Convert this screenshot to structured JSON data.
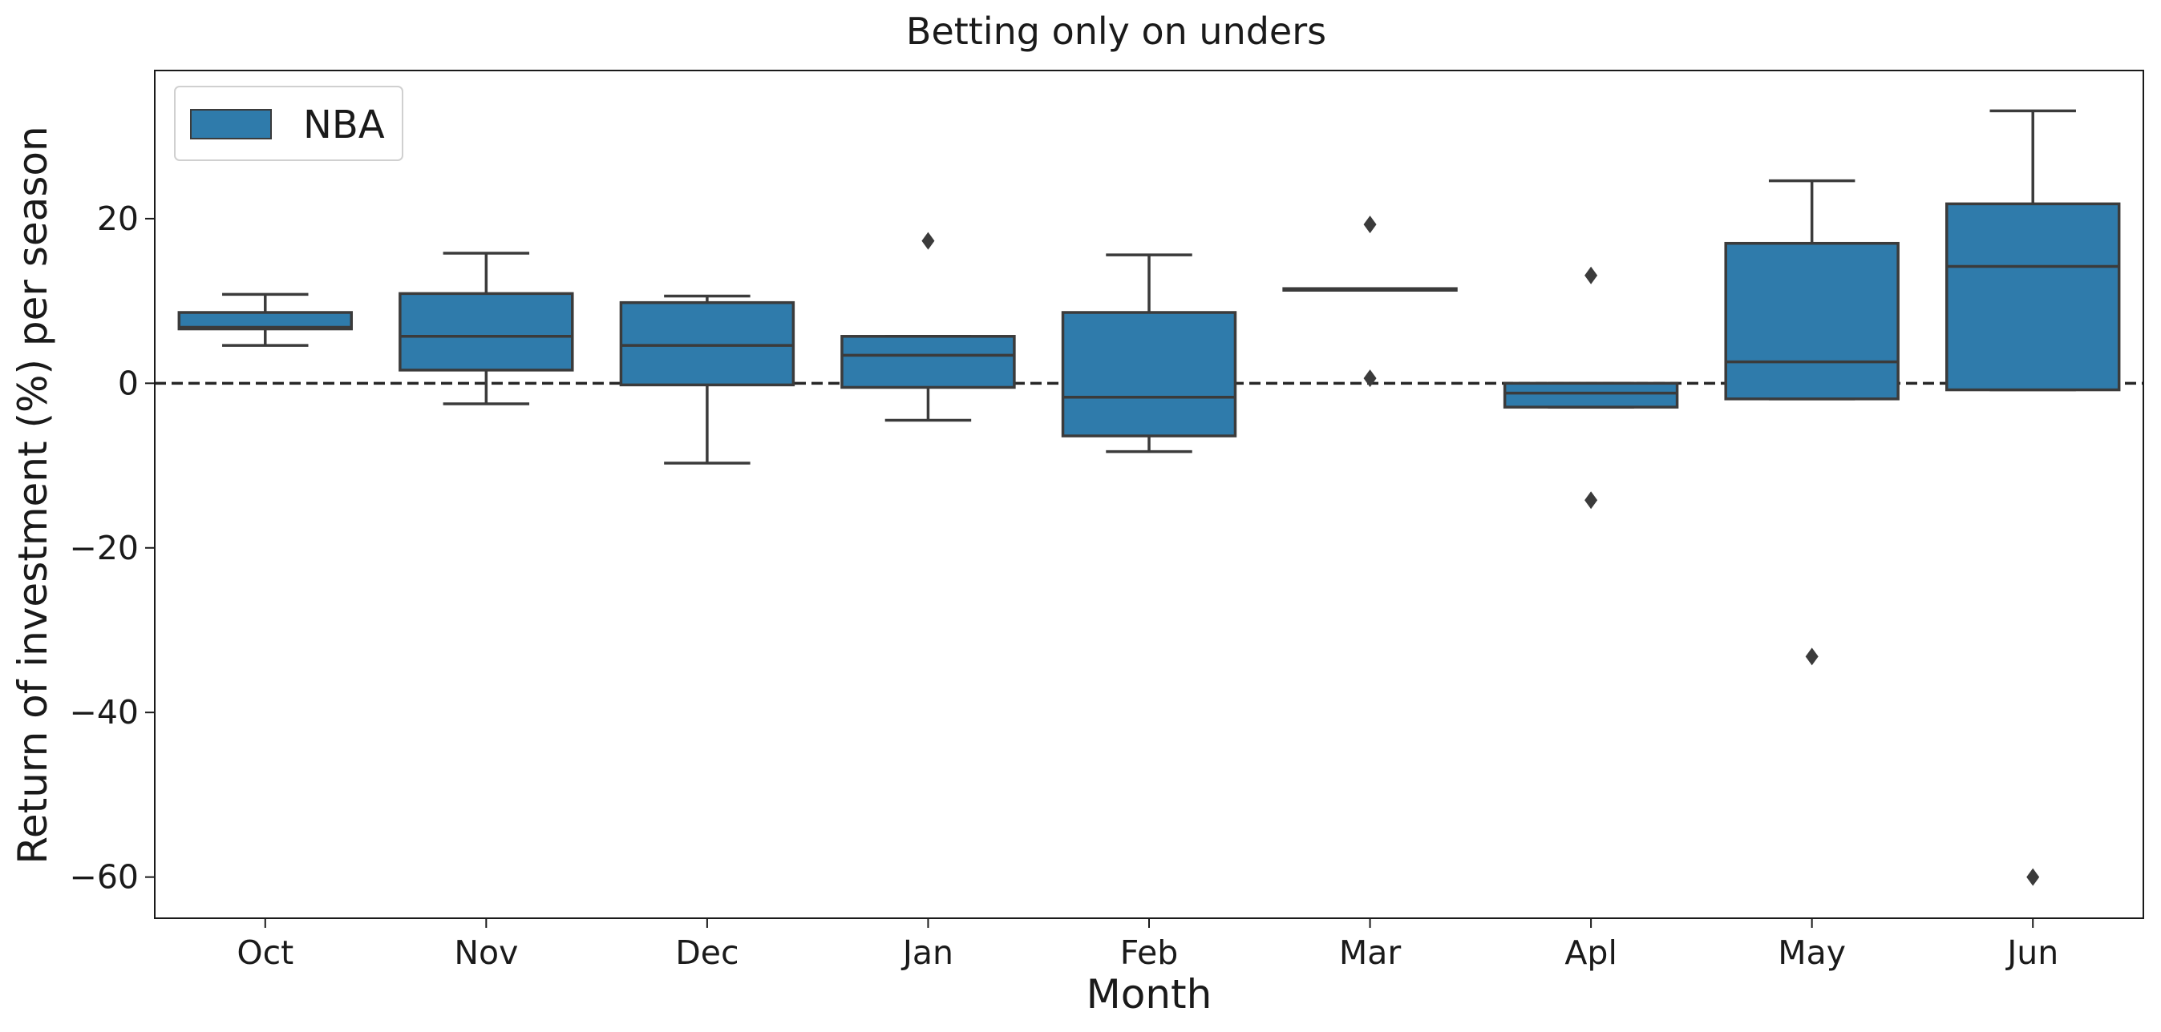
{
  "chart_data": {
    "type": "box",
    "title": "Betting only on unders",
    "xlabel": "Month",
    "ylabel": "Return of investment (%) per season",
    "ylim": [
      -65,
      38
    ],
    "yticks": [
      -60,
      -40,
      -20,
      0,
      20
    ],
    "ytick_labels": [
      "−60",
      "−40",
      "−20",
      "0",
      "20"
    ],
    "reference_line": {
      "y": 0,
      "style": "dashed",
      "color": "#262626"
    },
    "legend": {
      "position": "top-left",
      "entries": [
        {
          "label": "NBA",
          "color": "#2f7bab"
        }
      ]
    },
    "colors": {
      "box_fill": "#2f7bab",
      "box_edge": "#3b3b3b",
      "outlier": "#3b3b3b"
    },
    "categories": [
      "Oct",
      "Nov",
      "Dec",
      "Jan",
      "Feb",
      "Mar",
      "Apl",
      "May",
      "Jun"
    ],
    "series": [
      {
        "name": "NBA",
        "boxes": [
          {
            "category": "Oct",
            "whisker_low": 4.6,
            "q1": 6.6,
            "median": 6.8,
            "q3": 8.6,
            "whisker_high": 10.8,
            "outliers": []
          },
          {
            "category": "Nov",
            "whisker_low": -2.5,
            "q1": 1.6,
            "median": 5.7,
            "q3": 10.9,
            "whisker_high": 15.8,
            "outliers": []
          },
          {
            "category": "Dec",
            "whisker_low": -9.7,
            "q1": -0.2,
            "median": 4.6,
            "q3": 9.8,
            "whisker_high": 10.6,
            "outliers": []
          },
          {
            "category": "Jan",
            "whisker_low": -4.5,
            "q1": -0.5,
            "median": 3.4,
            "q3": 5.7,
            "whisker_high": 5.7,
            "outliers": [
              17.3
            ]
          },
          {
            "category": "Feb",
            "whisker_low": -8.3,
            "q1": -6.4,
            "median": -1.7,
            "q3": 8.6,
            "whisker_high": 15.6,
            "outliers": []
          },
          {
            "category": "Mar",
            "whisker_low": 11.3,
            "q1": 11.3,
            "median": 11.4,
            "q3": 11.5,
            "whisker_high": 11.5,
            "outliers": [
              19.3,
              0.6
            ]
          },
          {
            "category": "Apl",
            "whisker_low": -2.9,
            "q1": -2.9,
            "median": -1.2,
            "q3": 0.0,
            "whisker_high": 0.0,
            "outliers": [
              13.1,
              -14.2
            ]
          },
          {
            "category": "May",
            "whisker_low": -1.9,
            "q1": -1.9,
            "median": 2.6,
            "q3": 17.0,
            "whisker_high": 24.6,
            "outliers": [
              -33.2
            ]
          },
          {
            "category": "Jun",
            "whisker_low": -0.8,
            "q1": -0.8,
            "median": 14.2,
            "q3": 21.8,
            "whisker_high": 33.1,
            "outliers": [
              -60.0
            ]
          }
        ]
      }
    ]
  }
}
